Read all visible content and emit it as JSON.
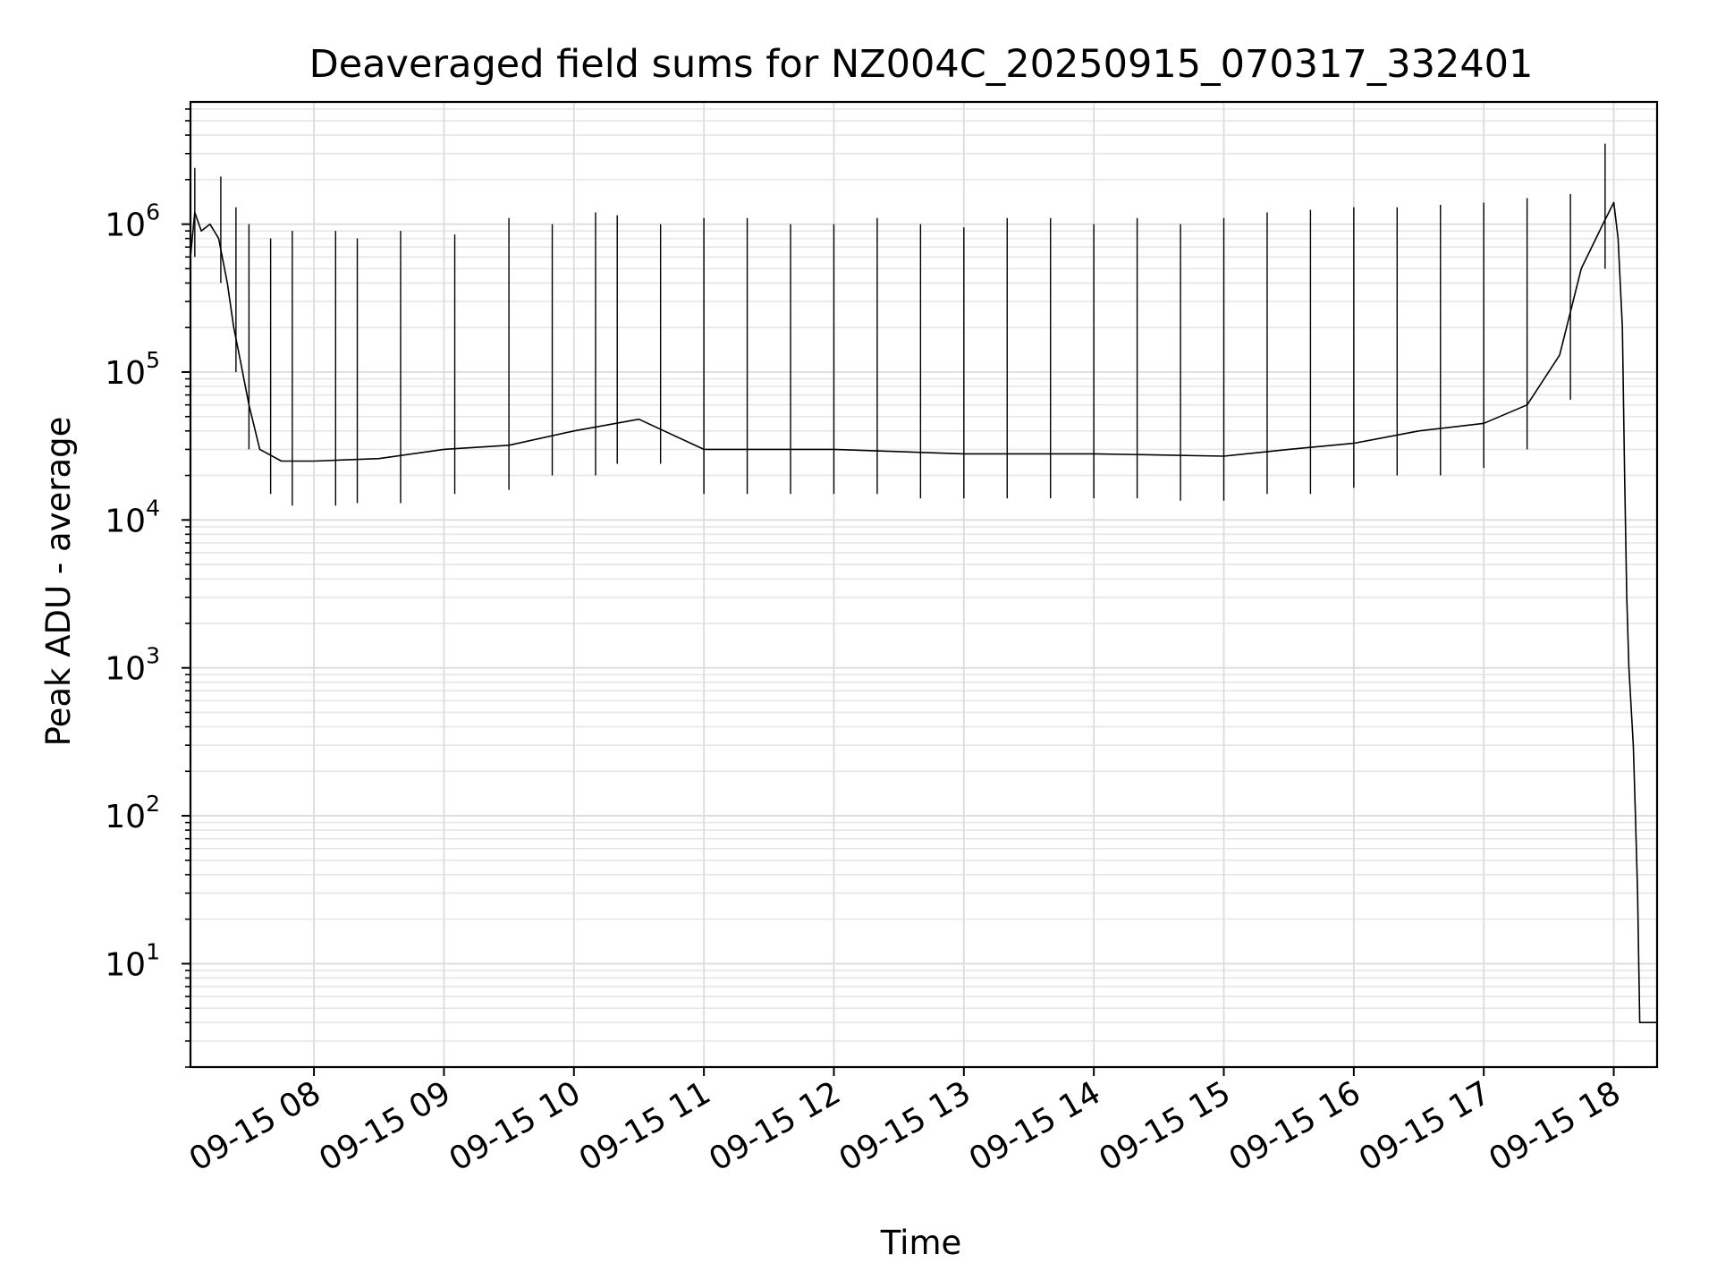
{
  "chart_data": {
    "type": "line",
    "title": "Deaveraged field sums for NZ004C_20250915_070317_332401",
    "xlabel": "Time",
    "ylabel": "Peak ADU - average",
    "yscale": "log",
    "grid": true,
    "x_range": [
      "09-15 07:03",
      "09-15 18:20"
    ],
    "ylim": [
      2,
      6700000
    ],
    "x_ticks": [
      {
        "value": "09-15 08:00",
        "label": "09-15 08"
      },
      {
        "value": "09-15 09:00",
        "label": "09-15 09"
      },
      {
        "value": "09-15 10:00",
        "label": "09-15 10"
      },
      {
        "value": "09-15 11:00",
        "label": "09-15 11"
      },
      {
        "value": "09-15 12:00",
        "label": "09-15 12"
      },
      {
        "value": "09-15 13:00",
        "label": "09-15 13"
      },
      {
        "value": "09-15 14:00",
        "label": "09-15 14"
      },
      {
        "value": "09-15 15:00",
        "label": "09-15 15"
      },
      {
        "value": "09-15 16:00",
        "label": "09-15 16"
      },
      {
        "value": "09-15 17:00",
        "label": "09-15 17"
      },
      {
        "value": "09-15 18:00",
        "label": "09-15 18"
      }
    ],
    "y_ticks": [
      {
        "value": 10,
        "base": "10",
        "exp": "1"
      },
      {
        "value": 100,
        "base": "10",
        "exp": "2"
      },
      {
        "value": 1000,
        "base": "10",
        "exp": "3"
      },
      {
        "value": 10000,
        "base": "10",
        "exp": "4"
      },
      {
        "value": 100000,
        "base": "10",
        "exp": "5"
      },
      {
        "value": 1000000,
        "base": "10",
        "exp": "6"
      }
    ],
    "series": [
      {
        "color": "#000000",
        "points": [
          [
            "09-15 07:03",
            600000
          ],
          [
            "09-15 07:05",
            1200000
          ],
          [
            "09-15 07:08",
            900000
          ],
          [
            "09-15 07:12",
            1000000
          ],
          [
            "09-15 07:16",
            800000
          ],
          [
            "09-15 07:20",
            400000
          ],
          [
            "09-15 07:23",
            200000
          ],
          [
            "09-15 07:26",
            120000
          ],
          [
            "09-15 07:30",
            60000
          ],
          [
            "09-15 07:35",
            30000
          ],
          [
            "09-15 07:45",
            25000
          ],
          [
            "09-15 08:00",
            25000
          ],
          [
            "09-15 08:30",
            26000
          ],
          [
            "09-15 09:00",
            30000
          ],
          [
            "09-15 09:30",
            32000
          ],
          [
            "09-15 10:00",
            40000
          ],
          [
            "09-15 10:30",
            48000
          ],
          [
            "09-15 11:00",
            30000
          ],
          [
            "09-15 12:00",
            30000
          ],
          [
            "09-15 13:00",
            28000
          ],
          [
            "09-15 14:00",
            28000
          ],
          [
            "09-15 15:00",
            27000
          ],
          [
            "09-15 15:30",
            30000
          ],
          [
            "09-15 16:00",
            33000
          ],
          [
            "09-15 16:30",
            40000
          ],
          [
            "09-15 17:00",
            45000
          ],
          [
            "09-15 17:20",
            60000
          ],
          [
            "09-15 17:35",
            130000
          ],
          [
            "09-15 17:45",
            500000
          ],
          [
            "09-15 17:55",
            1000000
          ],
          [
            "09-15 18:00",
            1400000
          ],
          [
            "09-15 18:02",
            800000
          ],
          [
            "09-15 18:04",
            200000
          ],
          [
            "09-15 18:05",
            20000
          ],
          [
            "09-15 18:06",
            3000
          ],
          [
            "09-15 18:07",
            1000
          ],
          [
            "09-15 18:09",
            300
          ],
          [
            "09-15 18:10",
            100
          ],
          [
            "09-15 18:11",
            30
          ],
          [
            "09-15 18:12",
            4
          ],
          [
            "09-15 18:20",
            4
          ]
        ],
        "spikes": [
          [
            "09-15 07:05",
            2400000
          ],
          [
            "09-15 07:17",
            2100000
          ],
          [
            "09-15 07:24",
            1300000
          ],
          [
            "09-15 07:30",
            1000000
          ],
          [
            "09-15 07:40",
            800000
          ],
          [
            "09-15 07:50",
            900000
          ],
          [
            "09-15 08:10",
            900000
          ],
          [
            "09-15 08:20",
            800000
          ],
          [
            "09-15 08:40",
            900000
          ],
          [
            "09-15 09:05",
            850000
          ],
          [
            "09-15 09:30",
            1100000
          ],
          [
            "09-15 09:50",
            1000000
          ],
          [
            "09-15 10:10",
            1200000
          ],
          [
            "09-15 10:20",
            1150000
          ],
          [
            "09-15 10:40",
            1000000
          ],
          [
            "09-15 11:00",
            1100000
          ],
          [
            "09-15 11:20",
            1100000
          ],
          [
            "09-15 11:40",
            1000000
          ],
          [
            "09-15 12:00",
            1000000
          ],
          [
            "09-15 12:20",
            1100000
          ],
          [
            "09-15 12:40",
            1000000
          ],
          [
            "09-15 13:00",
            950000
          ],
          [
            "09-15 13:20",
            1100000
          ],
          [
            "09-15 13:40",
            1100000
          ],
          [
            "09-15 14:00",
            1000000
          ],
          [
            "09-15 14:20",
            1100000
          ],
          [
            "09-15 14:40",
            1000000
          ],
          [
            "09-15 15:00",
            1100000
          ],
          [
            "09-15 15:20",
            1200000
          ],
          [
            "09-15 15:40",
            1250000
          ],
          [
            "09-15 16:00",
            1300000
          ],
          [
            "09-15 16:20",
            1300000
          ],
          [
            "09-15 16:40",
            1350000
          ],
          [
            "09-15 17:00",
            1400000
          ],
          [
            "09-15 17:20",
            1500000
          ],
          [
            "09-15 17:40",
            1600000
          ],
          [
            "09-15 17:56",
            3500000
          ]
        ]
      }
    ]
  }
}
